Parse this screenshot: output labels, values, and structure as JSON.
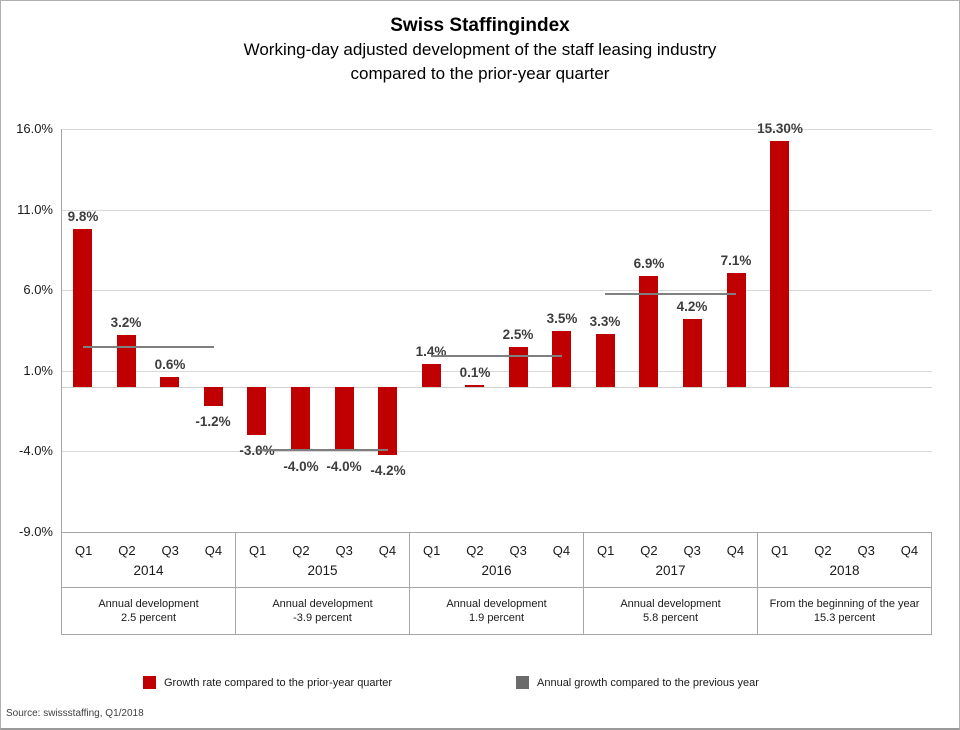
{
  "header": {
    "title": "Swiss Staffingindex",
    "subtitle_line1": "Working-day adjusted development of the staff leasing industry",
    "subtitle_line2": "compared to the prior-year quarter"
  },
  "chart_data": {
    "type": "bar",
    "title": "Swiss Staffingindex",
    "subtitle": "Working-day adjusted development of the staff leasing industry compared to the prior-year quarter",
    "unit": "%",
    "ylim": [
      -9,
      16
    ],
    "yticks": [
      16,
      11,
      6,
      1,
      -4,
      -9
    ],
    "ytick_labels": [
      "16.0%",
      "11.0%",
      "6.0%",
      "1.0%",
      "-4.0%",
      "-9.0%"
    ],
    "grid": true,
    "bar_color": "#c00000",
    "annual_line_color": "#7f7f7f",
    "quarter_labels": [
      "Q1",
      "Q2",
      "Q3",
      "Q4"
    ],
    "groups": [
      {
        "year": "2014",
        "values": [
          9.8,
          3.2,
          0.6,
          -1.2
        ],
        "labels": [
          "9.8%",
          "3.2%",
          "0.6%",
          "-1.2%"
        ],
        "annual_value": 2.5,
        "footer_line1": "Annual development",
        "footer_line2": "2.5 percent"
      },
      {
        "year": "2015",
        "values": [
          -3.0,
          -4.0,
          -4.0,
          -4.2
        ],
        "labels": [
          "-3.0%",
          "-4.0%",
          "-4.0%",
          "-4.2%"
        ],
        "annual_value": -3.9,
        "footer_line1": "Annual development",
        "footer_line2": "-3.9 percent"
      },
      {
        "year": "2016",
        "values": [
          1.4,
          0.1,
          2.5,
          3.5
        ],
        "labels": [
          "1.4%",
          "0.1%",
          "2.5%",
          "3.5%"
        ],
        "annual_value": 1.9,
        "footer_line1": "Annual development",
        "footer_line2": "1.9 percent"
      },
      {
        "year": "2017",
        "values": [
          3.3,
          6.9,
          4.2,
          7.1
        ],
        "labels": [
          "3.3%",
          "6.9%",
          "4.2%",
          "7.1%"
        ],
        "annual_value": 5.8,
        "footer_line1": "Annual development",
        "footer_line2": "5.8 percent"
      },
      {
        "year": "2018",
        "values": [
          15.3,
          null,
          null,
          null
        ],
        "labels": [
          "15.30%",
          null,
          null,
          null
        ],
        "annual_value": null,
        "footer_line1": "From the beginning of the year",
        "footer_line2": "15.3 percent"
      }
    ]
  },
  "legend": {
    "items": [
      {
        "label": "Growth rate compared to the prior-year quarter",
        "color": "#c00000"
      },
      {
        "label": "Annual growth compared to the previous year",
        "color": "#6b6b6b"
      }
    ]
  },
  "footer": {
    "source": "Source: swissstaffing, Q1/2018"
  }
}
